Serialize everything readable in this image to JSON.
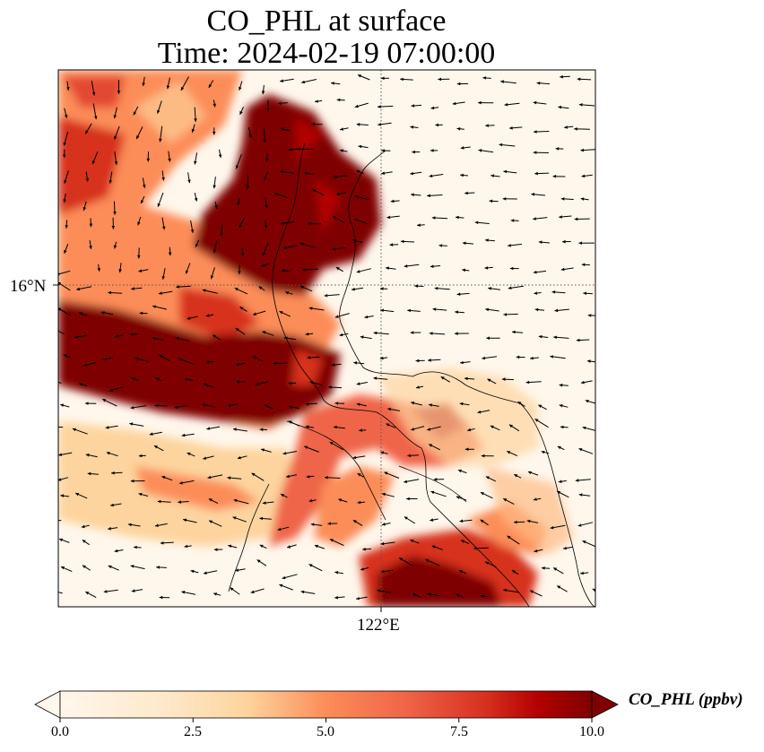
{
  "figure": {
    "title_line1": "CO_PHL at surface",
    "title_line2": "Time: 2024-02-19 07:00:00"
  },
  "axes": {
    "x_tick_label": "122°E",
    "y_tick_label": "16°N",
    "x_tick_lon": 122,
    "y_tick_lat": 16,
    "gridlines": "dotted"
  },
  "field": {
    "variable": "CO_PHL",
    "level": "surface",
    "units": "ppbv",
    "colormap": "OrRd",
    "range": [
      0,
      10
    ],
    "extend": "both",
    "colors": [
      "#fff7ec",
      "#fdd49e",
      "#fc8d59",
      "#d7301f",
      "#b30000",
      "#7f0000"
    ]
  },
  "colorbar": {
    "label": "CO_PHL (ppbv)",
    "ticks": [
      "0.0",
      "2.5",
      "5.0",
      "7.5",
      "10.0"
    ],
    "tick_values": [
      0,
      2.5,
      5,
      7.5,
      10
    ]
  }
}
